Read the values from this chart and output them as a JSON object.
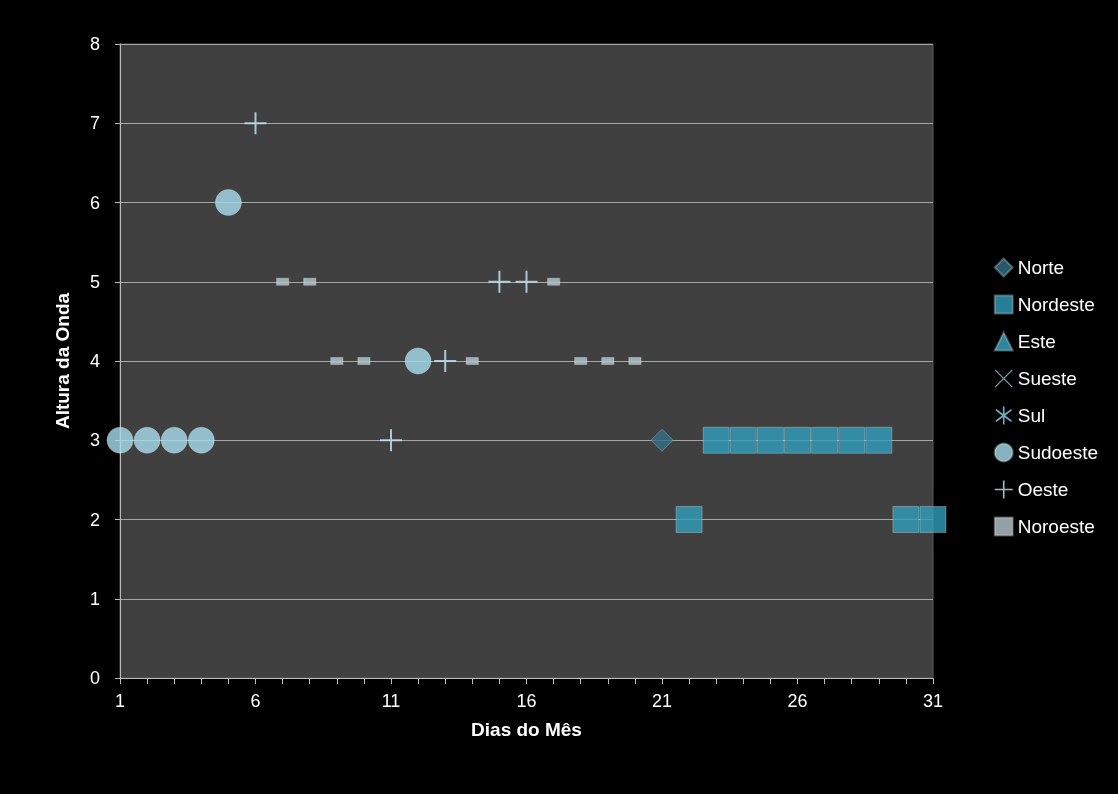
{
  "chart_data": {
    "type": "scatter",
    "xlabel": "Dias do Mês",
    "ylabel": "Altura da Onda",
    "xlim": [
      1,
      31
    ],
    "ylim": [
      0,
      8
    ],
    "xticks": [
      1,
      {
        "value": 2,
        "label": null
      },
      {
        "value": 3,
        "label": null
      },
      {
        "value": 4,
        "label": null
      },
      {
        "value": 5,
        "label": null
      },
      6,
      {
        "value": 7,
        "label": null
      },
      {
        "value": 8,
        "label": null
      },
      {
        "value": 9,
        "label": null
      },
      {
        "value": 10,
        "label": null
      },
      11,
      {
        "value": 12,
        "label": null
      },
      {
        "value": 13,
        "label": null
      },
      {
        "value": 14,
        "label": null
      },
      {
        "value": 15,
        "label": null
      },
      16,
      {
        "value": 17,
        "label": null
      },
      {
        "value": 18,
        "label": null
      },
      {
        "value": 19,
        "label": null
      },
      {
        "value": 20,
        "label": null
      },
      21,
      {
        "value": 22,
        "label": null
      },
      {
        "value": 23,
        "label": null
      },
      {
        "value": 24,
        "label": null
      },
      {
        "value": 25,
        "label": null
      },
      26,
      {
        "value": 27,
        "label": null
      },
      {
        "value": 28,
        "label": null
      },
      {
        "value": 29,
        "label": null
      },
      {
        "value": 30,
        "label": null
      },
      31
    ],
    "yticks": [
      0,
      1,
      2,
      3,
      4,
      5,
      6,
      7,
      8
    ],
    "grid": "y",
    "legend": "right",
    "series": [
      {
        "name": "Norte",
        "color": "#2e6f86",
        "marker": "diamond",
        "x": [
          21
        ],
        "values": [
          3
        ]
      },
      {
        "name": "Nordeste",
        "color": "#2f9dbd",
        "marker": "square",
        "x": [
          22,
          23,
          24,
          25,
          26,
          27,
          28,
          29,
          30,
          31
        ],
        "values": [
          2,
          3,
          3,
          3,
          3,
          3,
          3,
          3,
          2,
          2
        ]
      },
      {
        "name": "Este",
        "color": "#3aa6c4",
        "marker": "triangle"
      },
      {
        "name": "Sueste",
        "color": "#8fd0e8",
        "marker": "cross"
      },
      {
        "name": "Sul",
        "color": "#8fd0e8",
        "marker": "star"
      },
      {
        "name": "Sudoeste",
        "color": "#a8dff0",
        "marker": "circle",
        "x": [
          1,
          2,
          3,
          4,
          5,
          12
        ],
        "values": [
          3,
          3,
          3,
          3,
          6,
          4
        ]
      },
      {
        "name": "Oeste",
        "color": "#c5e8f5",
        "marker": "plus",
        "x": [
          6,
          11,
          13,
          15,
          16
        ],
        "values": [
          7,
          3,
          4,
          5,
          5
        ]
      },
      {
        "name": "Noroeste",
        "color": "#b8c8d0",
        "x": [
          7,
          8,
          9,
          10,
          14,
          17,
          18,
          19,
          20
        ],
        "values": [
          5,
          5,
          4,
          4,
          4,
          5,
          4,
          4,
          4
        ]
      }
    ]
  }
}
